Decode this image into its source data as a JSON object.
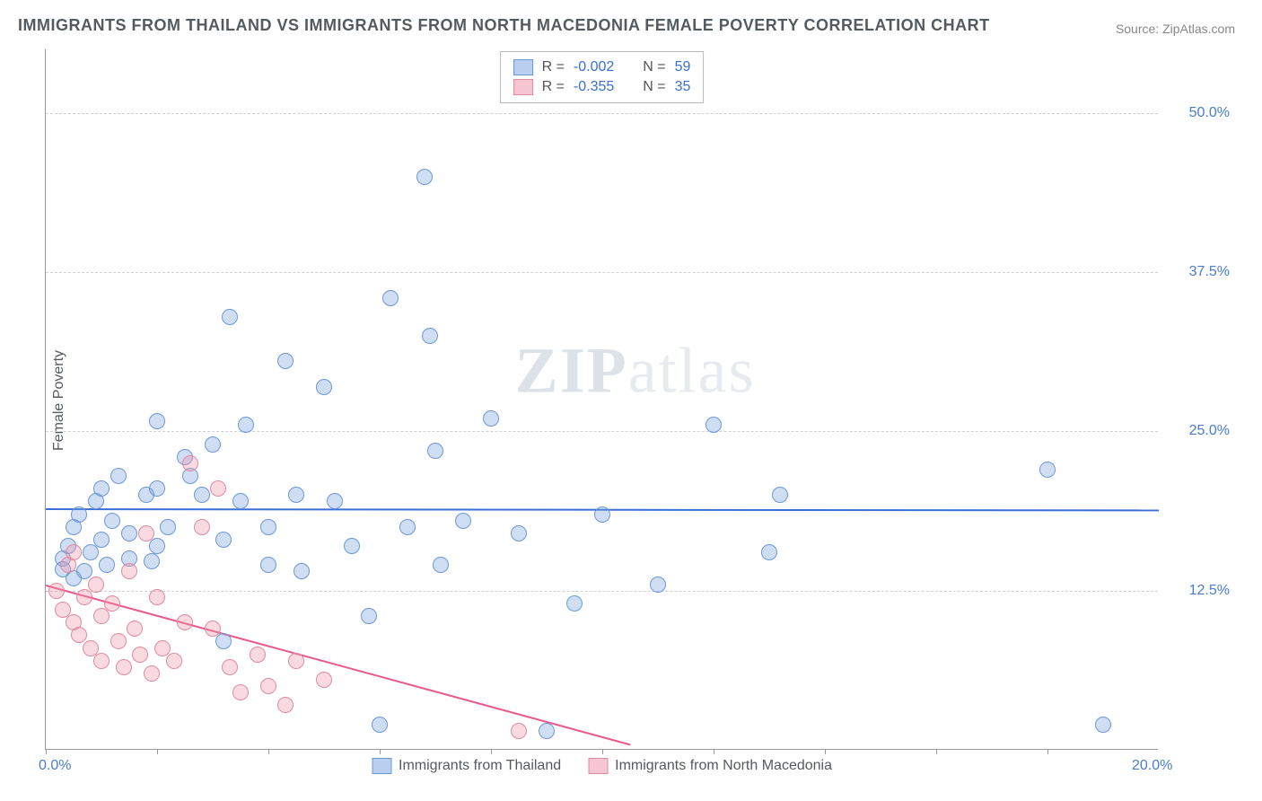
{
  "title": "IMMIGRANTS FROM THAILAND VS IMMIGRANTS FROM NORTH MACEDONIA FEMALE POVERTY CORRELATION CHART",
  "source_prefix": "Source: ",
  "source_link": "ZipAtlas.com",
  "y_axis_label": "Female Poverty",
  "watermark_bold": "ZIP",
  "watermark_light": "atlas",
  "chart": {
    "type": "scatter",
    "background_color": "#ffffff",
    "grid_color": "#d0d0d0",
    "axis_color": "#999999",
    "tick_label_color": "#4a7bd0",
    "xlim": [
      0,
      20
    ],
    "ylim": [
      0,
      55
    ],
    "y_ticks": [
      {
        "v": 12.5,
        "label": "12.5%"
      },
      {
        "v": 25.0,
        "label": "25.0%"
      },
      {
        "v": 37.5,
        "label": "37.5%"
      },
      {
        "v": 50.0,
        "label": "50.0%"
      }
    ],
    "x_tick_positions": [
      0,
      2,
      4,
      6,
      8,
      10,
      12,
      14,
      16,
      18
    ],
    "x_tick_labels": [
      {
        "v": 0,
        "label": "0.0%"
      },
      {
        "v": 20,
        "label": "20.0%"
      }
    ],
    "marker_radius": 9,
    "marker_stroke_width": 1,
    "series": [
      {
        "name": "Immigrants from Thailand",
        "fill": "rgba(120,160,220,0.35)",
        "stroke": "#6b98d8",
        "swatch_fill": "#b9cfef",
        "swatch_stroke": "#6b98d8",
        "stats": {
          "R": "-0.002",
          "N": "59"
        },
        "trend": {
          "x1": 0,
          "y1": 19.0,
          "x2": 20,
          "y2": 18.9,
          "color": "#3a6fd8",
          "width": 2
        },
        "points": [
          [
            0.3,
            15.0
          ],
          [
            0.3,
            14.2
          ],
          [
            0.4,
            16.0
          ],
          [
            0.5,
            17.5
          ],
          [
            0.5,
            13.5
          ],
          [
            0.6,
            18.5
          ],
          [
            0.7,
            14.0
          ],
          [
            0.8,
            15.5
          ],
          [
            0.9,
            19.5
          ],
          [
            1.0,
            16.5
          ],
          [
            1.0,
            20.5
          ],
          [
            1.1,
            14.5
          ],
          [
            1.2,
            18.0
          ],
          [
            1.3,
            21.5
          ],
          [
            1.5,
            15.0
          ],
          [
            1.5,
            17.0
          ],
          [
            1.8,
            20.0
          ],
          [
            1.9,
            14.8
          ],
          [
            2.0,
            16.0
          ],
          [
            2.0,
            20.5
          ],
          [
            2.0,
            25.8
          ],
          [
            2.2,
            17.5
          ],
          [
            2.5,
            23.0
          ],
          [
            2.6,
            21.5
          ],
          [
            2.8,
            20.0
          ],
          [
            3.0,
            24.0
          ],
          [
            3.2,
            16.5
          ],
          [
            3.2,
            8.5
          ],
          [
            3.3,
            34.0
          ],
          [
            3.5,
            19.5
          ],
          [
            3.6,
            25.5
          ],
          [
            4.0,
            17.5
          ],
          [
            4.0,
            14.5
          ],
          [
            4.3,
            30.5
          ],
          [
            4.5,
            20.0
          ],
          [
            4.6,
            14.0
          ],
          [
            5.0,
            28.5
          ],
          [
            5.2,
            19.5
          ],
          [
            5.5,
            16.0
          ],
          [
            5.8,
            10.5
          ],
          [
            6.0,
            2.0
          ],
          [
            6.2,
            35.5
          ],
          [
            6.5,
            17.5
          ],
          [
            6.8,
            45.0
          ],
          [
            6.9,
            32.5
          ],
          [
            7.0,
            23.5
          ],
          [
            7.1,
            14.5
          ],
          [
            7.5,
            18.0
          ],
          [
            8.0,
            26.0
          ],
          [
            8.5,
            17.0
          ],
          [
            9.0,
            1.5
          ],
          [
            9.5,
            11.5
          ],
          [
            10.0,
            18.5
          ],
          [
            11.0,
            13.0
          ],
          [
            12.0,
            25.5
          ],
          [
            13.0,
            15.5
          ],
          [
            13.2,
            20.0
          ],
          [
            18.0,
            22.0
          ],
          [
            19.0,
            2.0
          ]
        ]
      },
      {
        "name": "Immigrants from North Macedonia",
        "fill": "rgba(240,150,170,0.35)",
        "stroke": "#e08aa0",
        "swatch_fill": "#f6c6d2",
        "swatch_stroke": "#e08aa0",
        "stats": {
          "R": "-0.355",
          "N": "35"
        },
        "trend": {
          "x1": 0,
          "y1": 13.0,
          "x2": 10.5,
          "y2": 0.5,
          "color": "#e85a8a",
          "width": 2
        },
        "points": [
          [
            0.2,
            12.5
          ],
          [
            0.3,
            11.0
          ],
          [
            0.4,
            14.5
          ],
          [
            0.5,
            10.0
          ],
          [
            0.5,
            15.5
          ],
          [
            0.6,
            9.0
          ],
          [
            0.7,
            12.0
          ],
          [
            0.8,
            8.0
          ],
          [
            0.9,
            13.0
          ],
          [
            1.0,
            10.5
          ],
          [
            1.0,
            7.0
          ],
          [
            1.2,
            11.5
          ],
          [
            1.3,
            8.5
          ],
          [
            1.4,
            6.5
          ],
          [
            1.5,
            14.0
          ],
          [
            1.6,
            9.5
          ],
          [
            1.7,
            7.5
          ],
          [
            1.8,
            17.0
          ],
          [
            1.9,
            6.0
          ],
          [
            2.0,
            12.0
          ],
          [
            2.1,
            8.0
          ],
          [
            2.3,
            7.0
          ],
          [
            2.5,
            10.0
          ],
          [
            2.6,
            22.5
          ],
          [
            2.8,
            17.5
          ],
          [
            3.0,
            9.5
          ],
          [
            3.1,
            20.5
          ],
          [
            3.3,
            6.5
          ],
          [
            3.5,
            4.5
          ],
          [
            3.8,
            7.5
          ],
          [
            4.0,
            5.0
          ],
          [
            4.3,
            3.5
          ],
          [
            4.5,
            7.0
          ],
          [
            5.0,
            5.5
          ],
          [
            8.5,
            1.5
          ]
        ]
      }
    ],
    "stat_box": {
      "r_label": "R =",
      "n_label": "N ="
    }
  }
}
